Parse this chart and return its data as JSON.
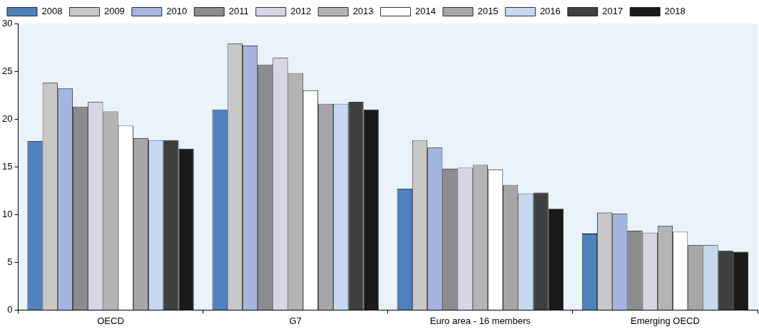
{
  "chart_data": {
    "type": "bar",
    "categories": [
      "OECD",
      "G7",
      "Euro area - 16 members",
      "Emerging OECD"
    ],
    "series": [
      {
        "name": "2008",
        "color": "#4f81bd",
        "values": [
          17.7,
          21.0,
          12.7,
          8.0
        ]
      },
      {
        "name": "2009",
        "color": "#c8c8c8",
        "values": [
          23.8,
          27.9,
          17.8,
          10.2
        ]
      },
      {
        "name": "2010",
        "color": "#a6b5e0",
        "values": [
          23.2,
          27.7,
          17.0,
          10.1
        ]
      },
      {
        "name": "2011",
        "color": "#8c8c8c",
        "values": [
          21.3,
          25.7,
          14.8,
          8.3
        ]
      },
      {
        "name": "2012",
        "color": "#d6d6e4",
        "values": [
          21.8,
          26.4,
          14.9,
          8.1
        ]
      },
      {
        "name": "2013",
        "color": "#b4b4b4",
        "values": [
          20.8,
          24.8,
          15.2,
          8.8
        ]
      },
      {
        "name": "2014",
        "color": "#ffffff",
        "values": [
          19.3,
          23.0,
          14.7,
          8.2
        ]
      },
      {
        "name": "2015",
        "color": "#a6a6a6",
        "values": [
          18.0,
          21.6,
          13.1,
          6.8
        ]
      },
      {
        "name": "2016",
        "color": "#c6d9f1",
        "values": [
          17.8,
          21.6,
          12.2,
          6.8
        ]
      },
      {
        "name": "2017",
        "color": "#404040",
        "values": [
          17.8,
          21.8,
          12.3,
          6.2
        ]
      },
      {
        "name": "2018",
        "color": "#1a1a1a",
        "values": [
          16.9,
          21.0,
          10.6,
          6.1
        ]
      }
    ],
    "ylim": [
      0,
      30
    ],
    "yticks": [
      0,
      5,
      10,
      15,
      20,
      25,
      30
    ],
    "grid": false,
    "legend": "top"
  }
}
